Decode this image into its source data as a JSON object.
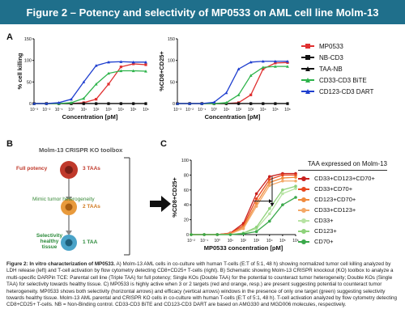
{
  "header": {
    "title": "Figure 2 – Potency and selectivity of MP0533 on AML cell line Molm-13"
  },
  "panels": {
    "a": "A",
    "b": "B",
    "c": "C"
  },
  "panel_a": {
    "left_ylabel": "% cell killing",
    "right_ylabel": "%CD8+CD25+",
    "xlabel": "Concentration [pM]",
    "left_yticks": [
      "0",
      "50",
      "100",
      "150"
    ],
    "right_yticks": [
      "0",
      "50",
      "100",
      "150"
    ],
    "xticks": [
      "10⁻³",
      "10⁻²",
      "10⁻¹",
      "10⁰",
      "10¹",
      "10²",
      "10³",
      "10⁴",
      "10⁵",
      "10⁶"
    ],
    "legend": [
      {
        "label": "MP0533",
        "color": "#e03030",
        "marker": "square"
      },
      {
        "label": "NB-CD3",
        "color": "#111111",
        "marker": "square"
      },
      {
        "label": "TAA-NB",
        "color": "#111111",
        "marker": "triangle"
      },
      {
        "label": "CD33-CD3 BiTE",
        "color": "#2db34a",
        "marker": "triangle"
      },
      {
        "label": "CD123-CD3 DART",
        "color": "#1f3fcf",
        "marker": "triangle"
      }
    ]
  },
  "panel_b": {
    "title": "Molm-13 CRISPR KO toolbox",
    "rows": [
      {
        "left": "Full potency",
        "right": "3 TAAs"
      },
      {
        "left": "Mimic tumor heterogeneity",
        "right": "2 TAAs"
      },
      {
        "left": "Selectivity\nhealthy tissue",
        "right": "1 TAA"
      }
    ]
  },
  "panel_c": {
    "ylabel": "%CD8+CD25+",
    "xlabel": "MP0533 concentration [pM]",
    "yticks": [
      "0",
      "20",
      "40",
      "60",
      "80",
      "100"
    ],
    "xticks": [
      "10⁻²",
      "10⁻¹",
      "10⁰",
      "10¹",
      "10²",
      "10³",
      "10⁴",
      "10⁵",
      "10⁶"
    ],
    "legend_title": "TAA expressed on Molm-13",
    "legend": [
      {
        "label": "CD33+CD123+CD70+",
        "color": "#c8201e"
      },
      {
        "label": "CD33+CD70+",
        "color": "#e8471e"
      },
      {
        "label": "CD123+CD70+",
        "color": "#f08a3c"
      },
      {
        "label": "CD33+CD123+",
        "color": "#f4a866"
      },
      {
        "label": "CD33+",
        "color": "#b7e3a3"
      },
      {
        "label": "CD123+",
        "color": "#8ed27a"
      },
      {
        "label": "CD70+",
        "color": "#3aa84a"
      }
    ]
  },
  "caption": {
    "bold_lead": "Figure 2: In vitro characterization of MP0533.",
    "text": "A) Molm-13 AML cells in co-culture with human T-cells (E:T of 5:1, 48 h) showing normalized tumor cell killing analyzed by LDH release (left) and T-cell activation by flow cytometry detecting CD8+CD25+ T-cells (right). B) Schematic showing Molm-13 CRISPR knockout (KO) toolbox to analyze a multi-specific DARPin TCE: Parental cell line (Triple TAA) for full potency; Single KOs (Double TAA) for the potential to counteract tumor heterogeneity; Double KOs (Single TAA) for selectivity towards healthy tissue. C) MP0533 is highly active when 3 or 2 targets (red and orange, resp.) are present suggesting potential to counteract tumor heterogeneity. MP0533 shows both selectivity (horizontal arrows) and efficacy (vertical arrows) windows in the presence of only one target (green) suggesting selectivity towards healthy tissue. Molm-13 AML parental and CRISPR KO cells in co-culture with human T-cells (E:T of 5:1, 48 h). T-cell activation analyzed by flow cytometry detecting CD8+CD25+ T-cells. NB = Non-Binding control. CD33-CD3 BiTE and CD123-CD3 DART are based on AMG330 and MGD006 molecules, respectively."
  },
  "chart_data": [
    {
      "type": "line",
      "title": "",
      "xlabel": "Concentration [pM]",
      "ylabel": "% cell killing",
      "x_log10": [
        -3,
        -2,
        -1,
        0,
        1,
        2,
        3,
        4,
        5,
        6
      ],
      "ylim": [
        0,
        150
      ],
      "series": [
        {
          "name": "MP0533",
          "color": "#e03030",
          "values": [
            0,
            0,
            0,
            0,
            2,
            10,
            45,
            85,
            92,
            90
          ]
        },
        {
          "name": "NB-CD3",
          "color": "#111111",
          "values": [
            0,
            0,
            0,
            0,
            0,
            0,
            0,
            0,
            0,
            0
          ]
        },
        {
          "name": "TAA-NB",
          "color": "#111111",
          "values": [
            0,
            0,
            0,
            0,
            0,
            0,
            0,
            0,
            0,
            0
          ]
        },
        {
          "name": "CD33-CD3 BiTE",
          "color": "#2db34a",
          "values": [
            0,
            0,
            0,
            2,
            12,
            45,
            70,
            76,
            76,
            75
          ]
        },
        {
          "name": "CD123-CD3 DART",
          "color": "#1f3fcf",
          "values": [
            0,
            0,
            2,
            10,
            50,
            88,
            96,
            97,
            96,
            96
          ]
        }
      ]
    },
    {
      "type": "line",
      "title": "",
      "xlabel": "Concentration [pM]",
      "ylabel": "%CD8+CD25+",
      "x_log10": [
        -3,
        -2,
        -1,
        0,
        1,
        2,
        3,
        4,
        5,
        6
      ],
      "ylim": [
        0,
        150
      ],
      "series": [
        {
          "name": "MP0533",
          "color": "#e03030",
          "values": [
            0,
            0,
            0,
            0,
            0,
            2,
            20,
            80,
            94,
            95
          ]
        },
        {
          "name": "NB-CD3",
          "color": "#111111",
          "values": [
            0,
            0,
            0,
            0,
            0,
            0,
            0,
            0,
            0,
            0
          ]
        },
        {
          "name": "TAA-NB",
          "color": "#111111",
          "values": [
            0,
            0,
            0,
            0,
            0,
            0,
            0,
            0,
            0,
            0
          ]
        },
        {
          "name": "CD33-CD3 BiTE",
          "color": "#2db34a",
          "values": [
            0,
            0,
            0,
            0,
            2,
            20,
            65,
            84,
            86,
            86
          ]
        },
        {
          "name": "CD123-CD3 DART",
          "color": "#1f3fcf",
          "values": [
            0,
            0,
            0,
            3,
            25,
            80,
            96,
            98,
            98,
            98
          ]
        }
      ]
    },
    {
      "type": "line",
      "title": "",
      "xlabel": "MP0533 concentration [pM]",
      "ylabel": "%CD8+CD25+",
      "x_log10": [
        -2,
        -1,
        0,
        1,
        2,
        3,
        4,
        5,
        6
      ],
      "ylim": [
        0,
        100
      ],
      "series": [
        {
          "name": "CD33+CD123+CD70+",
          "color": "#c8201e",
          "values": [
            0,
            0,
            0,
            2,
            15,
            55,
            78,
            82,
            82
          ]
        },
        {
          "name": "CD33+CD70+",
          "color": "#e8471e",
          "values": [
            0,
            0,
            0,
            2,
            12,
            48,
            74,
            80,
            80
          ]
        },
        {
          "name": "CD123+CD70+",
          "color": "#f08a3c",
          "values": [
            0,
            0,
            0,
            1,
            10,
            42,
            70,
            76,
            77
          ]
        },
        {
          "name": "CD33+CD123+",
          "color": "#f4a866",
          "values": [
            0,
            0,
            0,
            1,
            8,
            38,
            66,
            72,
            72
          ]
        },
        {
          "name": "CD33+",
          "color": "#b7e3a3",
          "values": [
            0,
            0,
            0,
            0,
            2,
            8,
            28,
            55,
            62
          ]
        },
        {
          "name": "CD123+",
          "color": "#8ed27a",
          "values": [
            0,
            0,
            0,
            0,
            2,
            10,
            35,
            60,
            65
          ]
        },
        {
          "name": "CD70+",
          "color": "#3aa84a",
          "values": [
            0,
            0,
            0,
            0,
            1,
            4,
            18,
            40,
            50
          ]
        }
      ]
    }
  ]
}
